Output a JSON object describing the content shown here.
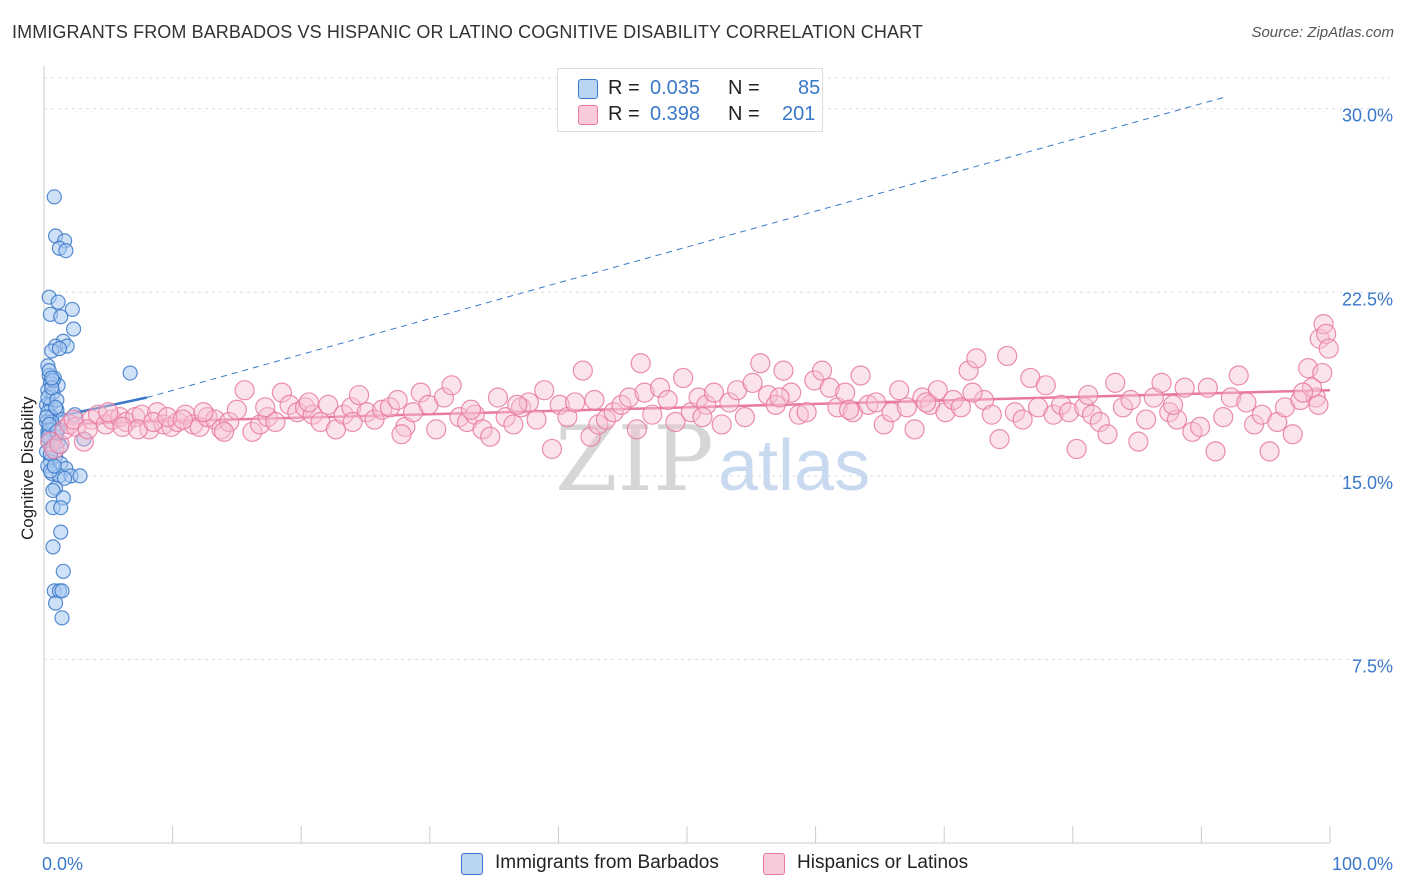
{
  "title": "IMMIGRANTS FROM BARBADOS VS HISPANIC OR LATINO COGNITIVE DISABILITY CORRELATION CHART",
  "source": "Source: ZipAtlas.com",
  "watermark": {
    "zip": "ZIP",
    "atlas": "atlas"
  },
  "colors": {
    "blue": "#3a78c9",
    "blue_fill": "#a8c8f0",
    "pink": "#e87aa0",
    "pink_fill": "#f7c0d4",
    "grid": "#dcdcdc",
    "axis_tick_text": "#3a78c9"
  },
  "legend": {
    "rows": [
      {
        "r_label": "R =",
        "r_value": "0.035",
        "n_label": "N =",
        "n_value": "85",
        "color": "blue"
      },
      {
        "r_label": "R =",
        "r_value": "0.398",
        "n_label": "N =",
        "n_value": "201",
        "color": "pink"
      }
    ]
  },
  "bottom_legend": [
    {
      "label": "Immigrants from Barbados",
      "color": "blue"
    },
    {
      "label": "Hispanics or Latinos",
      "color": "pink"
    }
  ],
  "chart_data": {
    "type": "scatter",
    "title": "IMMIGRANTS FROM BARBADOS VS HISPANIC OR LATINO COGNITIVE DISABILITY CORRELATION CHART",
    "xlabel": "",
    "ylabel": "Cognitive Disability",
    "xlim": [
      0,
      100
    ],
    "ylim": [
      0,
      31.5
    ],
    "x_tick_labels": [
      {
        "value": 0,
        "label": "0.0%"
      },
      {
        "value": 100,
        "label": "100.0%"
      }
    ],
    "y_tick_labels": [
      {
        "value": 7.5,
        "label": "7.5%"
      },
      {
        "value": 15.0,
        "label": "15.0%"
      },
      {
        "value": 22.5,
        "label": "22.5%"
      },
      {
        "value": 30.0,
        "label": "30.0%"
      }
    ],
    "grid": true,
    "series": [
      {
        "name": "Immigrants from Barbados",
        "color": "blue",
        "R": 0.035,
        "N": 85,
        "trend_solid": {
          "x": [
            0,
            8
          ],
          "y": [
            17.3,
            18.2
          ]
        },
        "trend_dashed": {
          "x": [
            8,
            92
          ],
          "y": [
            18.2,
            30.5
          ]
        },
        "points": [
          [
            0.8,
            26.4
          ],
          [
            0.9,
            24.8
          ],
          [
            1.6,
            24.6
          ],
          [
            1.2,
            24.3
          ],
          [
            1.7,
            24.2
          ],
          [
            0.4,
            22.3
          ],
          [
            1.1,
            22.1
          ],
          [
            0.5,
            21.6
          ],
          [
            2.2,
            21.8
          ],
          [
            1.3,
            21.5
          ],
          [
            2.3,
            21.0
          ],
          [
            1.5,
            20.5
          ],
          [
            0.9,
            20.3
          ],
          [
            1.8,
            20.3
          ],
          [
            0.6,
            20.1
          ],
          [
            1.2,
            20.2
          ],
          [
            0.3,
            19.5
          ],
          [
            0.4,
            19.1
          ],
          [
            0.8,
            19.0
          ],
          [
            0.5,
            18.8
          ],
          [
            1.1,
            18.7
          ],
          [
            0.3,
            18.5
          ],
          [
            0.7,
            18.4
          ],
          [
            6.7,
            19.2
          ],
          [
            0.2,
            17.9
          ],
          [
            0.5,
            17.9
          ],
          [
            1.0,
            17.7
          ],
          [
            0.3,
            17.6
          ],
          [
            0.6,
            17.4
          ],
          [
            1.4,
            17.3
          ],
          [
            2.4,
            17.5
          ],
          [
            0.2,
            17.2
          ],
          [
            0.8,
            17.0
          ],
          [
            1.1,
            16.9
          ],
          [
            0.3,
            16.8
          ],
          [
            0.4,
            16.7
          ],
          [
            0.9,
            16.6
          ],
          [
            0.5,
            16.5
          ],
          [
            3.1,
            16.5
          ],
          [
            0.3,
            16.4
          ],
          [
            0.8,
            16.3
          ],
          [
            0.6,
            16.2
          ],
          [
            0.2,
            16.0
          ],
          [
            0.9,
            15.8
          ],
          [
            0.5,
            15.6
          ],
          [
            1.3,
            15.5
          ],
          [
            0.3,
            15.4
          ],
          [
            1.7,
            15.3
          ],
          [
            0.6,
            15.1
          ],
          [
            1.2,
            15.0
          ],
          [
            2.1,
            15.0
          ],
          [
            2.8,
            15.0
          ],
          [
            1.6,
            14.9
          ],
          [
            0.9,
            14.5
          ],
          [
            0.7,
            14.4
          ],
          [
            1.5,
            14.1
          ],
          [
            0.7,
            13.7
          ],
          [
            1.3,
            13.7
          ],
          [
            1.3,
            12.7
          ],
          [
            0.7,
            12.1
          ],
          [
            1.5,
            11.1
          ],
          [
            0.8,
            10.3
          ],
          [
            1.2,
            10.3
          ],
          [
            1.4,
            10.3
          ],
          [
            0.9,
            9.8
          ],
          [
            1.4,
            9.2
          ],
          [
            0.3,
            18.2
          ],
          [
            0.6,
            17.2
          ],
          [
            0.4,
            16.9
          ],
          [
            0.7,
            16.1
          ],
          [
            0.5,
            15.9
          ],
          [
            1.0,
            18.1
          ],
          [
            0.4,
            19.3
          ],
          [
            0.7,
            18.9
          ],
          [
            0.2,
            17.4
          ],
          [
            1.1,
            16.4
          ],
          [
            0.5,
            15.2
          ],
          [
            0.9,
            17.8
          ],
          [
            0.3,
            16.6
          ],
          [
            0.6,
            18.6
          ],
          [
            0.8,
            15.4
          ],
          [
            1.3,
            16.2
          ],
          [
            0.4,
            17.1
          ],
          [
            0.6,
            19.0
          ],
          [
            1.0,
            16.8
          ]
        ]
      },
      {
        "name": "Hispanics or Latinos",
        "color": "pink",
        "R": 0.398,
        "N": 201,
        "trend_solid": {
          "x": [
            0,
            100
          ],
          "y": [
            17.1,
            18.5
          ]
        },
        "points": [
          [
            0.5,
            16.4
          ],
          [
            0.8,
            16.1
          ],
          [
            1.2,
            16.3
          ],
          [
            1.6,
            16.9
          ],
          [
            2.0,
            17.1
          ],
          [
            2.5,
            17.0
          ],
          [
            3.1,
            16.4
          ],
          [
            3.7,
            17.3
          ],
          [
            4.2,
            17.5
          ],
          [
            4.8,
            17.1
          ],
          [
            5.3,
            17.3
          ],
          [
            5.9,
            17.4
          ],
          [
            6.4,
            17.2
          ],
          [
            7.1,
            17.4
          ],
          [
            7.6,
            17.5
          ],
          [
            8.2,
            16.9
          ],
          [
            8.8,
            17.6
          ],
          [
            9.3,
            17.1
          ],
          [
            9.9,
            17.0
          ],
          [
            10.4,
            17.2
          ],
          [
            11.0,
            17.5
          ],
          [
            11.6,
            17.1
          ],
          [
            12.1,
            17.0
          ],
          [
            12.7,
            17.4
          ],
          [
            13.3,
            17.3
          ],
          [
            13.8,
            16.9
          ],
          [
            14.4,
            17.2
          ],
          [
            15.0,
            17.7
          ],
          [
            15.6,
            18.5
          ],
          [
            16.2,
            16.8
          ],
          [
            16.8,
            17.1
          ],
          [
            17.4,
            17.4
          ],
          [
            18.0,
            17.2
          ],
          [
            18.5,
            18.4
          ],
          [
            19.1,
            17.9
          ],
          [
            19.7,
            17.6
          ],
          [
            20.3,
            17.8
          ],
          [
            20.9,
            17.5
          ],
          [
            21.5,
            17.2
          ],
          [
            22.1,
            17.9
          ],
          [
            22.7,
            16.9
          ],
          [
            23.3,
            17.5
          ],
          [
            23.9,
            17.8
          ],
          [
            24.5,
            18.3
          ],
          [
            25.1,
            17.6
          ],
          [
            25.7,
            17.3
          ],
          [
            26.3,
            17.7
          ],
          [
            26.9,
            17.8
          ],
          [
            27.5,
            18.1
          ],
          [
            28.1,
            17.0
          ],
          [
            28.7,
            17.6
          ],
          [
            29.3,
            18.4
          ],
          [
            29.9,
            17.9
          ],
          [
            30.5,
            16.9
          ],
          [
            31.1,
            18.2
          ],
          [
            31.7,
            18.7
          ],
          [
            32.3,
            17.4
          ],
          [
            32.9,
            17.2
          ],
          [
            33.5,
            17.5
          ],
          [
            34.1,
            16.9
          ],
          [
            34.7,
            16.6
          ],
          [
            35.3,
            18.2
          ],
          [
            35.9,
            17.4
          ],
          [
            36.5,
            17.1
          ],
          [
            37.1,
            17.8
          ],
          [
            37.7,
            18.0
          ],
          [
            38.3,
            17.3
          ],
          [
            38.9,
            18.5
          ],
          [
            39.5,
            16.1
          ],
          [
            40.1,
            17.9
          ],
          [
            40.7,
            17.4
          ],
          [
            41.3,
            18.0
          ],
          [
            41.9,
            19.3
          ],
          [
            42.5,
            16.6
          ],
          [
            43.1,
            17.1
          ],
          [
            43.7,
            17.3
          ],
          [
            44.3,
            17.6
          ],
          [
            44.9,
            17.9
          ],
          [
            45.5,
            18.2
          ],
          [
            46.1,
            16.9
          ],
          [
            46.7,
            18.4
          ],
          [
            47.3,
            17.5
          ],
          [
            47.9,
            18.6
          ],
          [
            48.5,
            18.1
          ],
          [
            49.1,
            17.2
          ],
          [
            49.7,
            19.0
          ],
          [
            50.3,
            17.6
          ],
          [
            50.9,
            18.2
          ],
          [
            51.5,
            17.9
          ],
          [
            52.1,
            18.4
          ],
          [
            52.7,
            17.1
          ],
          [
            53.3,
            18.0
          ],
          [
            53.9,
            18.5
          ],
          [
            54.5,
            17.4
          ],
          [
            55.1,
            18.8
          ],
          [
            55.7,
            19.6
          ],
          [
            56.3,
            18.3
          ],
          [
            56.9,
            17.9
          ],
          [
            57.5,
            19.3
          ],
          [
            58.1,
            18.4
          ],
          [
            58.7,
            17.5
          ],
          [
            59.3,
            17.6
          ],
          [
            59.9,
            18.9
          ],
          [
            60.5,
            19.3
          ],
          [
            61.1,
            18.6
          ],
          [
            61.7,
            17.8
          ],
          [
            62.3,
            18.4
          ],
          [
            62.9,
            17.6
          ],
          [
            63.5,
            19.1
          ],
          [
            64.1,
            17.9
          ],
          [
            64.7,
            18.0
          ],
          [
            65.3,
            17.1
          ],
          [
            65.9,
            17.6
          ],
          [
            66.5,
            18.5
          ],
          [
            67.1,
            17.8
          ],
          [
            67.7,
            16.9
          ],
          [
            68.3,
            18.2
          ],
          [
            68.9,
            17.9
          ],
          [
            69.5,
            18.5
          ],
          [
            70.1,
            17.6
          ],
          [
            70.7,
            18.1
          ],
          [
            71.3,
            17.8
          ],
          [
            71.9,
            19.3
          ],
          [
            72.5,
            19.8
          ],
          [
            73.1,
            18.1
          ],
          [
            73.7,
            17.5
          ],
          [
            74.3,
            16.5
          ],
          [
            74.9,
            19.9
          ],
          [
            75.5,
            17.6
          ],
          [
            76.1,
            17.3
          ],
          [
            76.7,
            19.0
          ],
          [
            77.3,
            17.8
          ],
          [
            77.9,
            18.7
          ],
          [
            78.5,
            17.5
          ],
          [
            79.1,
            17.9
          ],
          [
            79.7,
            17.6
          ],
          [
            80.3,
            16.1
          ],
          [
            80.9,
            17.8
          ],
          [
            81.5,
            17.5
          ],
          [
            82.1,
            17.2
          ],
          [
            82.7,
            16.7
          ],
          [
            83.3,
            18.8
          ],
          [
            83.9,
            17.8
          ],
          [
            84.5,
            18.1
          ],
          [
            85.1,
            16.4
          ],
          [
            85.7,
            17.3
          ],
          [
            86.3,
            18.2
          ],
          [
            86.9,
            18.8
          ],
          [
            87.5,
            17.6
          ],
          [
            88.1,
            17.3
          ],
          [
            88.7,
            18.6
          ],
          [
            89.3,
            16.8
          ],
          [
            89.9,
            17.0
          ],
          [
            90.5,
            18.6
          ],
          [
            91.1,
            16.0
          ],
          [
            91.7,
            17.4
          ],
          [
            92.3,
            18.2
          ],
          [
            92.9,
            19.1
          ],
          [
            93.5,
            18.0
          ],
          [
            94.1,
            17.1
          ],
          [
            94.7,
            17.5
          ],
          [
            95.3,
            16.0
          ],
          [
            95.9,
            17.2
          ],
          [
            96.5,
            17.8
          ],
          [
            97.1,
            16.7
          ],
          [
            97.7,
            18.1
          ],
          [
            98.3,
            19.4
          ],
          [
            98.9,
            18.2
          ],
          [
            99.2,
            20.6
          ],
          [
            99.5,
            21.2
          ],
          [
            99.7,
            20.8
          ],
          [
            99.9,
            20.2
          ],
          [
            99.4,
            19.2
          ],
          [
            99.1,
            17.9
          ],
          [
            98.6,
            18.6
          ],
          [
            97.9,
            18.4
          ],
          [
            2.3,
            17.3
          ],
          [
            3.4,
            16.9
          ],
          [
            5.0,
            17.6
          ],
          [
            6.1,
            17.0
          ],
          [
            7.3,
            16.9
          ],
          [
            8.5,
            17.2
          ],
          [
            9.6,
            17.4
          ],
          [
            10.8,
            17.3
          ],
          [
            12.4,
            17.6
          ],
          [
            14.0,
            16.8
          ],
          [
            17.2,
            17.8
          ],
          [
            20.6,
            18.0
          ],
          [
            24.0,
            17.2
          ],
          [
            27.8,
            16.7
          ],
          [
            33.2,
            17.7
          ],
          [
            36.8,
            17.9
          ],
          [
            42.8,
            18.1
          ],
          [
            46.4,
            19.6
          ],
          [
            51.2,
            17.4
          ],
          [
            57.2,
            18.2
          ],
          [
            62.6,
            17.7
          ],
          [
            68.6,
            18.0
          ],
          [
            72.2,
            18.4
          ],
          [
            81.2,
            18.3
          ],
          [
            87.8,
            17.9
          ]
        ]
      }
    ]
  }
}
